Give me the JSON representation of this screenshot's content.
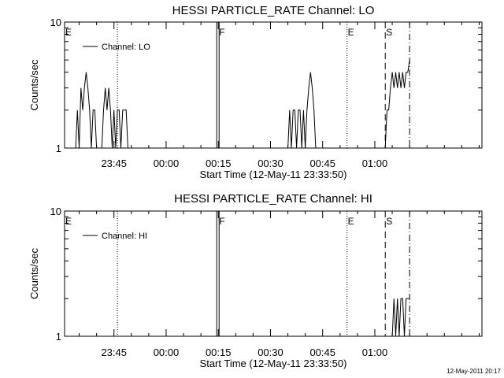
{
  "timestamp": "12-May-2011 20:17",
  "chart_data": [
    {
      "type": "line",
      "title": "HESSI PARTICLE_RATE Channel: LO",
      "xlabel": "Start Time (12-May-11 23:33:50)",
      "ylabel": "Counts/sec",
      "y_scale": "log",
      "ylim": [
        1,
        10
      ],
      "y_tick_labels": [
        "1",
        "10"
      ],
      "xlim_minutes": [
        -14.2,
        105.8
      ],
      "x_tick_labels": [
        "23:45",
        "00:00",
        "00:15",
        "00:30",
        "00:45",
        "01:00"
      ],
      "x_tick_minutes": [
        0,
        15,
        30,
        45,
        60,
        75
      ],
      "legend": {
        "position": "top-left",
        "entries": [
          "Channel: LO"
        ]
      },
      "markers": [
        {
          "label": "E",
          "minute": -14.2,
          "style": "dotted"
        },
        {
          "label": "",
          "minute": 1.0,
          "style": "dotted"
        },
        {
          "label": "F",
          "minute": 30.0,
          "style": "double"
        },
        {
          "label": "E",
          "minute": 67.0,
          "style": "dotted"
        },
        {
          "label": "S",
          "minute": 78.0,
          "style": "dashed"
        },
        {
          "label": "",
          "minute": 85.0,
          "style": "dashdot"
        }
      ],
      "series": [
        {
          "name": "Channel: LO",
          "points": [
            [
              -11,
              1
            ],
            [
              -10.5,
              2
            ],
            [
              -10,
              1
            ],
            [
              -9.5,
              3
            ],
            [
              -9,
              2
            ],
            [
              -8.5,
              3
            ],
            [
              -8,
              4
            ],
            [
              -7.5,
              3
            ],
            [
              -7,
              2
            ],
            [
              -6.5,
              1
            ],
            [
              -6,
              2
            ],
            [
              -5.5,
              2
            ],
            [
              -5,
              1
            ],
            [
              -3.5,
              1
            ],
            [
              -3,
              2
            ],
            [
              -2.5,
              3
            ],
            [
              -2,
              2
            ],
            [
              -1.5,
              3
            ],
            [
              -1,
              2
            ],
            [
              -0.5,
              1
            ],
            [
              0,
              2
            ],
            [
              0.5,
              1
            ],
            [
              1,
              2
            ],
            [
              1.5,
              2
            ],
            [
              2,
              1
            ],
            [
              2.5,
              2
            ],
            [
              3,
              2
            ],
            [
              3.5,
              2
            ],
            [
              4,
              1
            ],
            [
              50,
              1
            ],
            [
              50.5,
              2
            ],
            [
              51,
              1
            ],
            [
              51.5,
              2
            ],
            [
              52,
              2
            ],
            [
              52.5,
              1
            ],
            [
              53,
              2
            ],
            [
              53.5,
              2
            ],
            [
              54,
              1
            ],
            [
              54.5,
              2
            ],
            [
              55,
              1
            ],
            [
              55.5,
              2
            ],
            [
              56,
              3
            ],
            [
              56.5,
              4
            ],
            [
              57,
              3
            ],
            [
              57.5,
              2
            ],
            [
              58,
              1
            ],
            [
              78,
              1
            ],
            [
              78.5,
              2
            ],
            [
              79,
              2
            ],
            [
              79.5,
              3
            ],
            [
              80,
              4
            ],
            [
              80.5,
              3
            ],
            [
              81,
              4
            ],
            [
              81.5,
              3
            ],
            [
              82,
              4
            ],
            [
              82.5,
              3
            ],
            [
              83,
              4
            ],
            [
              83.5,
              3
            ],
            [
              84,
              4
            ],
            [
              84.5,
              4
            ],
            [
              85,
              5
            ]
          ]
        }
      ]
    },
    {
      "type": "line",
      "title": "HESSI PARTICLE_RATE Channel: HI",
      "xlabel": "Start Time (12-May-11 23:33:50)",
      "ylabel": "Counts/sec",
      "y_scale": "log",
      "ylim": [
        1,
        10
      ],
      "y_tick_labels": [
        "1",
        "10"
      ],
      "xlim_minutes": [
        -14.2,
        105.8
      ],
      "x_tick_labels": [
        "23:45",
        "00:00",
        "00:15",
        "00:30",
        "00:45",
        "01:00"
      ],
      "x_tick_minutes": [
        0,
        15,
        30,
        45,
        60,
        75
      ],
      "legend": {
        "position": "top-left",
        "entries": [
          "Channel: HI"
        ]
      },
      "markers": [
        {
          "label": "E",
          "minute": -14.2,
          "style": "dotted"
        },
        {
          "label": "",
          "minute": 1.0,
          "style": "dotted"
        },
        {
          "label": "F",
          "minute": 30.0,
          "style": "double"
        },
        {
          "label": "E",
          "minute": 67.0,
          "style": "dotted"
        },
        {
          "label": "S",
          "minute": 78.0,
          "style": "dashed"
        },
        {
          "label": "",
          "minute": 85.0,
          "style": "dashdot"
        }
      ],
      "series": [
        {
          "name": "Channel: HI",
          "points": [
            [
              80,
              1
            ],
            [
              80.5,
              2
            ],
            [
              81,
              1
            ],
            [
              81.5,
              2
            ],
            [
              82,
              1
            ],
            [
              82.5,
              2
            ],
            [
              83,
              2
            ],
            [
              83.5,
              1
            ],
            [
              84,
              2
            ],
            [
              84.5,
              2
            ],
            [
              85,
              2
            ]
          ]
        }
      ]
    }
  ]
}
